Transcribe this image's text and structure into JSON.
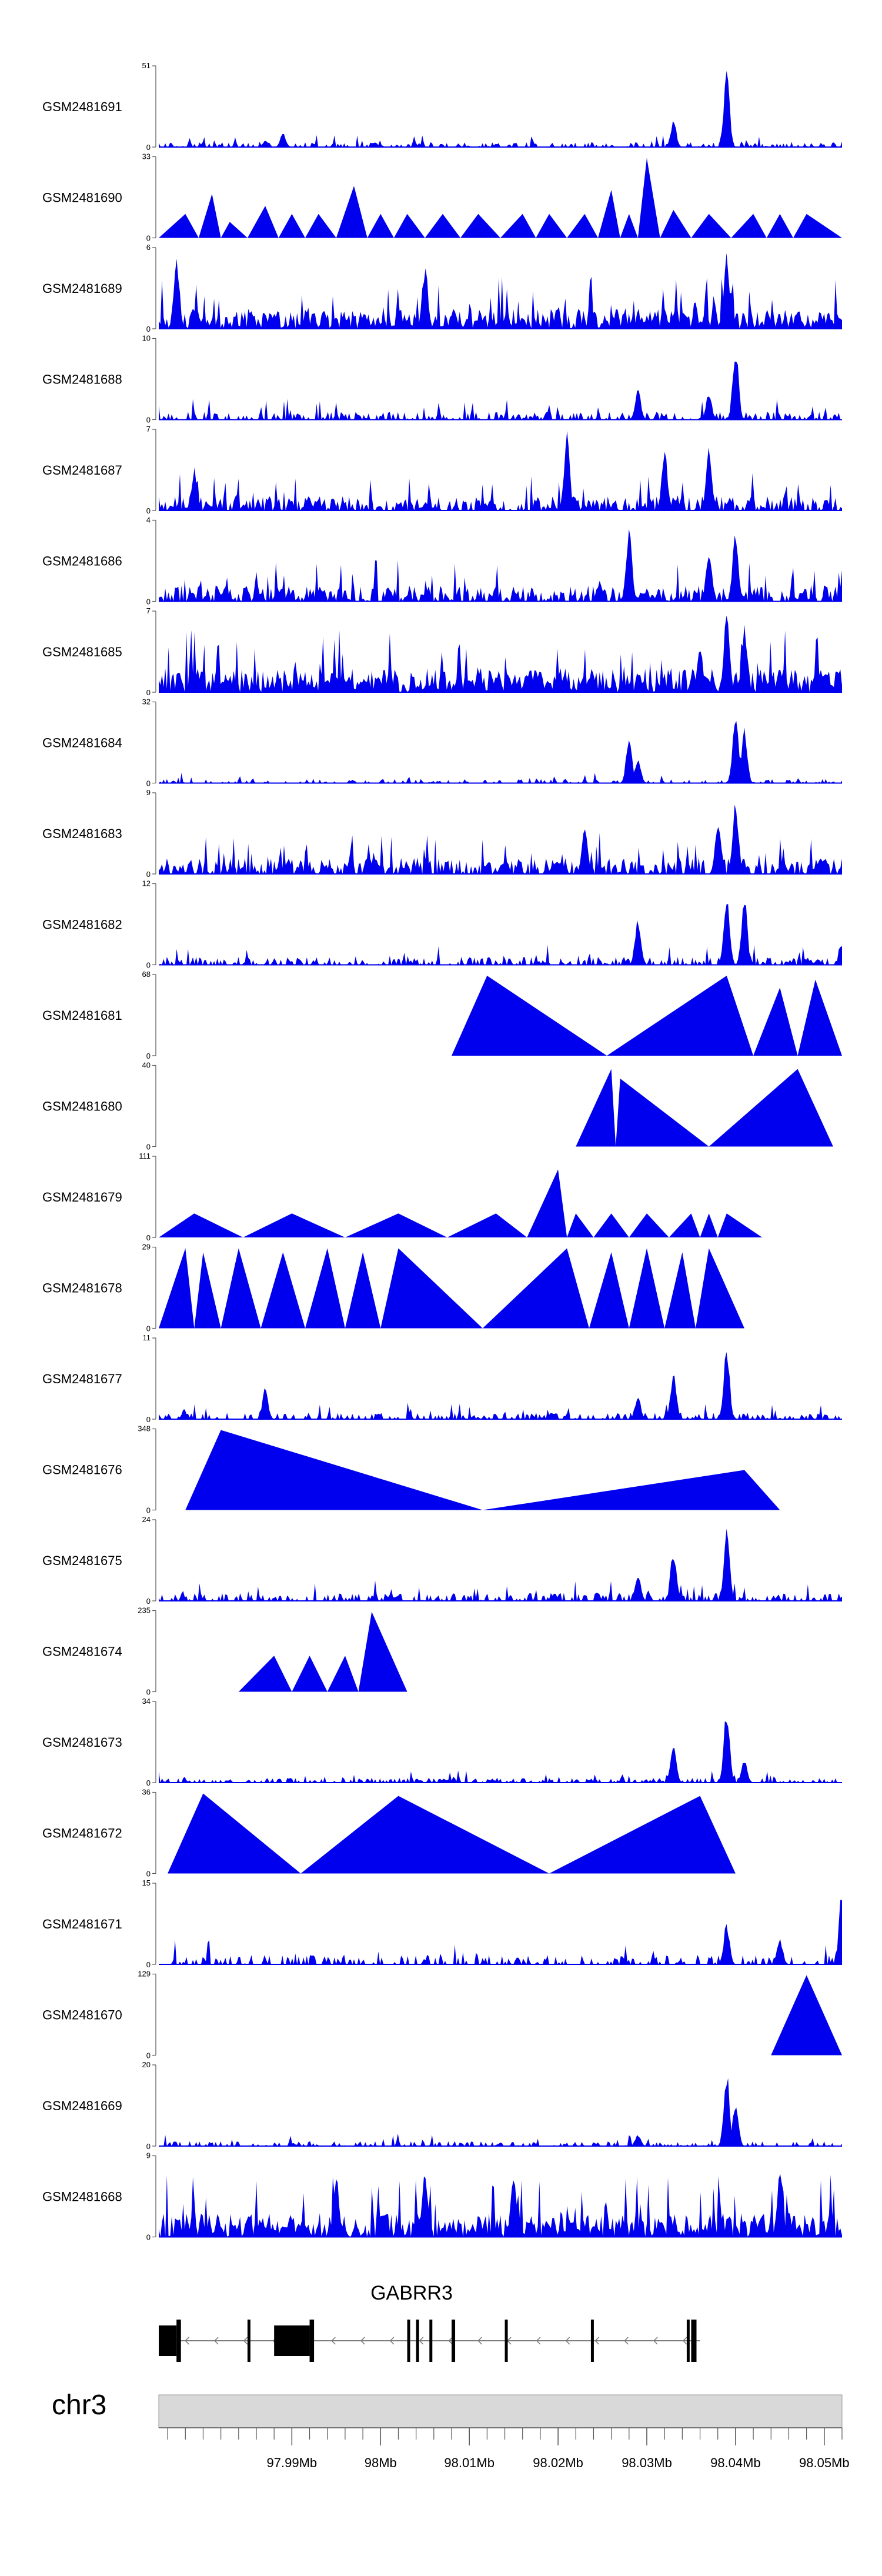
{
  "chart_data": {
    "type": "area",
    "title": "",
    "chromosome": "chr3",
    "x_range_mb": [
      97.975,
      98.052
    ],
    "x_ticks": [
      {
        "value": 97.99,
        "label": "97.99Mb"
      },
      {
        "value": 98.0,
        "label": "98Mb"
      },
      {
        "value": 98.01,
        "label": "98.01Mb"
      },
      {
        "value": 98.02,
        "label": "98.02Mb"
      },
      {
        "value": 98.03,
        "label": "98.03Mb"
      },
      {
        "value": 98.04,
        "label": "98.04Mb"
      },
      {
        "value": 98.05,
        "label": "98.05Mb"
      }
    ],
    "fill_color": "#0000ee",
    "tracks": [
      {
        "name": "GSM2481691",
        "ymax": 51,
        "style": "dense",
        "density": 0.55,
        "base": 0.06,
        "peaks": [
          [
            98.039,
            1.0
          ],
          [
            98.033,
            0.35
          ],
          [
            97.989,
            0.18
          ],
          [
            97.987,
            0.08
          ]
        ]
      },
      {
        "name": "GSM2481690",
        "ymax": 33,
        "style": "sparse",
        "peaks": [
          [
            97.978,
            0.3
          ],
          [
            97.981,
            0.55
          ],
          [
            97.983,
            0.2
          ],
          [
            97.987,
            0.4
          ],
          [
            97.99,
            0.3
          ],
          [
            97.993,
            0.3
          ],
          [
            97.997,
            0.65
          ],
          [
            98.0,
            0.3
          ],
          [
            98.003,
            0.3
          ],
          [
            98.007,
            0.3
          ],
          [
            98.011,
            0.3
          ],
          [
            98.016,
            0.3
          ],
          [
            98.019,
            0.3
          ],
          [
            98.023,
            0.3
          ],
          [
            98.026,
            0.6
          ],
          [
            98.028,
            0.3
          ],
          [
            98.03,
            1.0
          ],
          [
            98.033,
            0.35
          ],
          [
            98.037,
            0.3
          ],
          [
            98.042,
            0.3
          ],
          [
            98.045,
            0.3
          ],
          [
            98.048,
            0.3
          ]
        ]
      },
      {
        "name": "GSM2481689",
        "ymax": 6,
        "style": "dense",
        "density": 1.0,
        "base": 0.25,
        "peaks": [
          [
            97.977,
            0.95
          ],
          [
            98.039,
            0.95
          ],
          [
            98.005,
            0.8
          ]
        ]
      },
      {
        "name": "GSM2481688",
        "ymax": 10,
        "style": "dense",
        "density": 0.55,
        "base": 0.1,
        "peaks": [
          [
            98.04,
            1.0
          ],
          [
            98.029,
            0.4
          ],
          [
            98.037,
            0.35
          ]
        ]
      },
      {
        "name": "GSM2481687",
        "ymax": 7,
        "style": "dense",
        "density": 0.8,
        "base": 0.18,
        "peaks": [
          [
            98.021,
            1.0
          ],
          [
            98.032,
            0.85
          ],
          [
            98.037,
            0.8
          ],
          [
            97.979,
            0.55
          ]
        ]
      },
      {
        "name": "GSM2481686",
        "ymax": 4,
        "style": "dense",
        "density": 0.85,
        "base": 0.2,
        "peaks": [
          [
            98.028,
            1.0
          ],
          [
            98.04,
            0.95
          ],
          [
            98.037,
            0.7
          ]
        ]
      },
      {
        "name": "GSM2481685",
        "ymax": 7,
        "style": "dense",
        "density": 1.0,
        "base": 0.3,
        "peaks": [
          [
            98.039,
            1.0
          ],
          [
            98.041,
            0.9
          ],
          [
            98.036,
            0.6
          ]
        ]
      },
      {
        "name": "GSM2481684",
        "ymax": 32,
        "style": "dense",
        "density": 0.45,
        "base": 0.05,
        "peaks": [
          [
            98.04,
            1.0
          ],
          [
            98.041,
            0.7
          ],
          [
            98.028,
            0.6
          ],
          [
            98.029,
            0.35
          ]
        ]
      },
      {
        "name": "GSM2481683",
        "ymax": 9,
        "style": "dense",
        "density": 0.85,
        "base": 0.2,
        "peaks": [
          [
            98.04,
            1.0
          ],
          [
            98.038,
            0.7
          ],
          [
            98.023,
            0.6
          ]
        ]
      },
      {
        "name": "GSM2481682",
        "ymax": 12,
        "style": "dense",
        "density": 0.6,
        "base": 0.1,
        "peaks": [
          [
            98.039,
            1.0
          ],
          [
            98.041,
            0.9
          ],
          [
            98.029,
            0.65
          ],
          [
            98.052,
            0.3
          ]
        ]
      },
      {
        "name": "GSM2481681",
        "ymax": 68,
        "style": "sparse",
        "peaks": [
          [
            98.012,
            1.0
          ],
          [
            98.039,
            1.0
          ],
          [
            98.045,
            0.85
          ],
          [
            98.049,
            0.95
          ]
        ]
      },
      {
        "name": "GSM2481680",
        "ymax": 40,
        "style": "sparse",
        "peaks": [
          [
            98.026,
            0.97
          ],
          [
            98.027,
            0.85
          ],
          [
            98.047,
            0.97
          ]
        ]
      },
      {
        "name": "GSM2481679",
        "ymax": 111,
        "style": "sparse",
        "peaks": [
          [
            97.979,
            0.3
          ],
          [
            97.99,
            0.3
          ],
          [
            98.002,
            0.3
          ],
          [
            98.013,
            0.3
          ],
          [
            98.02,
            0.85
          ],
          [
            98.022,
            0.3
          ],
          [
            98.026,
            0.3
          ],
          [
            98.03,
            0.3
          ],
          [
            98.035,
            0.3
          ],
          [
            98.037,
            0.3
          ],
          [
            98.039,
            0.3
          ]
        ]
      },
      {
        "name": "GSM2481678",
        "ymax": 29,
        "style": "sparse",
        "peaks": [
          [
            97.978,
            1.0
          ],
          [
            97.98,
            0.95
          ],
          [
            97.984,
            1.0
          ],
          [
            97.989,
            0.95
          ],
          [
            97.994,
            1.0
          ],
          [
            97.998,
            0.95
          ],
          [
            98.002,
            1.0
          ],
          [
            98.021,
            1.0
          ],
          [
            98.026,
            0.95
          ],
          [
            98.03,
            1.0
          ],
          [
            98.034,
            0.95
          ],
          [
            98.037,
            1.0
          ]
        ]
      },
      {
        "name": "GSM2481677",
        "ymax": 11,
        "style": "dense",
        "density": 0.55,
        "base": 0.08,
        "peaks": [
          [
            98.039,
            1.0
          ],
          [
            98.033,
            0.65
          ],
          [
            97.987,
            0.4
          ],
          [
            98.029,
            0.3
          ]
        ]
      },
      {
        "name": "GSM2481676",
        "ymax": 348,
        "style": "sparse",
        "peaks": [
          [
            97.982,
            1.0
          ],
          [
            98.041,
            0.5
          ]
        ]
      },
      {
        "name": "GSM2481675",
        "ymax": 24,
        "style": "dense",
        "density": 0.55,
        "base": 0.1,
        "peaks": [
          [
            98.039,
            1.0
          ],
          [
            98.033,
            0.7
          ],
          [
            98.029,
            0.35
          ]
        ]
      },
      {
        "name": "GSM2481674",
        "ymax": 235,
        "style": "sparse",
        "peaks": [
          [
            97.988,
            0.45
          ],
          [
            97.992,
            0.45
          ],
          [
            97.996,
            0.45
          ],
          [
            97.999,
            1.0
          ]
        ]
      },
      {
        "name": "GSM2481673",
        "ymax": 34,
        "style": "dense",
        "density": 0.55,
        "base": 0.06,
        "peaks": [
          [
            98.039,
            1.0
          ],
          [
            98.033,
            0.55
          ],
          [
            98.041,
            0.3
          ]
        ]
      },
      {
        "name": "GSM2481672",
        "ymax": 36,
        "style": "sparse",
        "peaks": [
          [
            97.98,
            1.0
          ],
          [
            98.002,
            0.97
          ],
          [
            98.036,
            0.97
          ]
        ]
      },
      {
        "name": "GSM2481671",
        "ymax": 15,
        "style": "dense",
        "density": 0.45,
        "base": 0.12,
        "peaks": [
          [
            98.052,
            1.0
          ],
          [
            98.039,
            0.55
          ],
          [
            98.045,
            0.35
          ]
        ]
      },
      {
        "name": "GSM2481670",
        "ymax": 129,
        "style": "sparse",
        "peaks": [
          [
            98.048,
            1.0
          ]
        ]
      },
      {
        "name": "GSM2481669",
        "ymax": 20,
        "style": "dense",
        "density": 0.45,
        "base": 0.06,
        "peaks": [
          [
            98.039,
            1.0
          ],
          [
            98.04,
            0.6
          ],
          [
            98.029,
            0.15
          ]
        ]
      },
      {
        "name": "GSM2481668",
        "ymax": 9,
        "style": "dense",
        "density": 1.0,
        "base": 0.3,
        "peaks": [
          [
            98.005,
            0.9
          ],
          [
            98.015,
            0.85
          ],
          [
            97.995,
            0.85
          ],
          [
            98.045,
            0.85
          ]
        ]
      }
    ],
    "gene": {
      "name": "GABRR3",
      "strand": "-",
      "start_mb": 97.975,
      "end_mb": 98.036,
      "exons_mb": [
        [
          97.975,
          97.977
        ],
        [
          97.977,
          97.9775
        ],
        [
          97.985,
          97.9853
        ],
        [
          97.988,
          97.992
        ],
        [
          97.992,
          97.9925
        ],
        [
          98.003,
          98.0033
        ],
        [
          98.004,
          98.0043
        ],
        [
          98.0055,
          98.0058
        ],
        [
          98.008,
          98.0084
        ],
        [
          98.014,
          98.0143
        ],
        [
          98.0237,
          98.024
        ],
        [
          98.0345,
          98.0348
        ],
        [
          98.035,
          98.0356
        ]
      ]
    }
  }
}
